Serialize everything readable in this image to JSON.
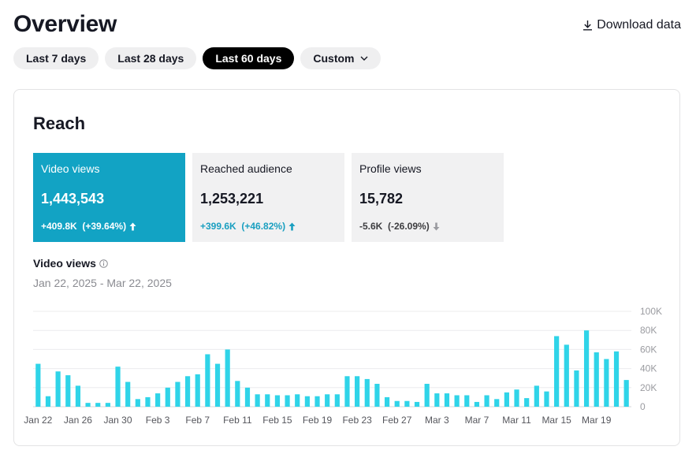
{
  "header": {
    "title": "Overview",
    "download_label": "Download data"
  },
  "ranges": [
    {
      "label": "Last 7 days",
      "active": false
    },
    {
      "label": "Last 28 days",
      "active": false
    },
    {
      "label": "Last 60 days",
      "active": true
    },
    {
      "label": "Custom",
      "active": false
    }
  ],
  "reach": {
    "title": "Reach",
    "metrics": [
      {
        "label": "Video views",
        "value": "1,443,543",
        "delta": "+409.8K  (+39.64%)",
        "direction": "up",
        "selected": true
      },
      {
        "label": "Reached audience",
        "value": "1,253,221",
        "delta": "+399.6K  (+46.82%)",
        "direction": "up",
        "selected": false
      },
      {
        "label": "Profile views",
        "value": "15,782",
        "delta": "-5.6K  (-26.09%)",
        "direction": "down",
        "selected": false
      }
    ],
    "chart_title": "Video views",
    "date_range": "Jan 22, 2025 - Mar 22, 2025"
  },
  "colors": {
    "accent": "#12a3c4",
    "bar": "#2fd4e8",
    "grid": "#ececee",
    "axis_text": "#9a9ba0"
  },
  "chart_data": {
    "type": "bar",
    "title": "Video views",
    "xlabel": "",
    "ylabel": "",
    "ylim": [
      0,
      100000
    ],
    "y_ticks": [
      "0",
      "20K",
      "40K",
      "60K",
      "80K",
      "100K"
    ],
    "x_tick_labels": [
      "Jan 22",
      "Jan 26",
      "Jan 30",
      "Feb 3",
      "Feb 7",
      "Feb 11",
      "Feb 15",
      "Feb 19",
      "Feb 23",
      "Feb 27",
      "Mar 3",
      "Mar 7",
      "Mar 11",
      "Mar 15",
      "Mar 19"
    ],
    "x_tick_every": 4,
    "series": [
      {
        "name": "Video views",
        "values": [
          45000,
          11000,
          37000,
          33000,
          22000,
          4000,
          4000,
          4000,
          42000,
          26000,
          8000,
          10000,
          14000,
          20000,
          26000,
          32000,
          34000,
          55000,
          45000,
          60000,
          27000,
          20000,
          13000,
          13000,
          12000,
          12000,
          13000,
          11000,
          11000,
          13000,
          13000,
          32000,
          32000,
          29000,
          24000,
          10000,
          6000,
          6000,
          5000,
          24000,
          14000,
          14000,
          12000,
          12000,
          5000,
          12000,
          8000,
          15000,
          18000,
          9000,
          22000,
          16000,
          74000,
          65000,
          38000,
          80000,
          57000,
          50000,
          58000,
          28000
        ]
      }
    ]
  }
}
